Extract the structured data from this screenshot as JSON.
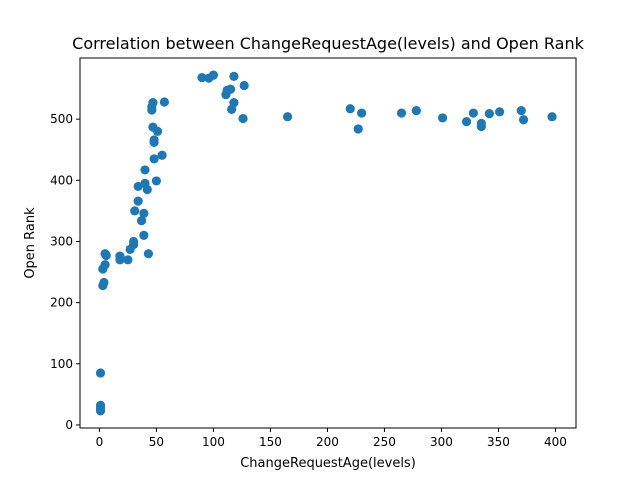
{
  "chart_data": {
    "type": "scatter",
    "title": "Correlation between ChangeRequestAge(levels) and Open Rank",
    "xlabel": "ChangeRequestAge(levels)",
    "ylabel": "Open Rank",
    "xlim": [
      -17,
      418
    ],
    "ylim": [
      -5,
      600
    ],
    "xticks": [
      0,
      50,
      100,
      150,
      200,
      250,
      300,
      350,
      400
    ],
    "yticks": [
      0,
      100,
      200,
      300,
      400,
      500
    ],
    "grid": false,
    "marker_color": "#1f77b4",
    "points": [
      {
        "x": 1,
        "y": 85
      },
      {
        "x": 1,
        "y": 32
      },
      {
        "x": 1,
        "y": 27
      },
      {
        "x": 1,
        "y": 23
      },
      {
        "x": 3,
        "y": 228
      },
      {
        "x": 4,
        "y": 233
      },
      {
        "x": 3,
        "y": 255
      },
      {
        "x": 5,
        "y": 262
      },
      {
        "x": 5,
        "y": 280
      },
      {
        "x": 6,
        "y": 277
      },
      {
        "x": 18,
        "y": 276
      },
      {
        "x": 18,
        "y": 270
      },
      {
        "x": 25,
        "y": 270
      },
      {
        "x": 27,
        "y": 287
      },
      {
        "x": 30,
        "y": 295
      },
      {
        "x": 30,
        "y": 300
      },
      {
        "x": 31,
        "y": 350
      },
      {
        "x": 34,
        "y": 366
      },
      {
        "x": 34,
        "y": 390
      },
      {
        "x": 37,
        "y": 334
      },
      {
        "x": 39,
        "y": 346
      },
      {
        "x": 39,
        "y": 310
      },
      {
        "x": 40,
        "y": 395
      },
      {
        "x": 40,
        "y": 417
      },
      {
        "x": 42,
        "y": 385
      },
      {
        "x": 43,
        "y": 280
      },
      {
        "x": 46,
        "y": 515
      },
      {
        "x": 46,
        "y": 520
      },
      {
        "x": 47,
        "y": 527
      },
      {
        "x": 47,
        "y": 487
      },
      {
        "x": 48,
        "y": 462
      },
      {
        "x": 48,
        "y": 466
      },
      {
        "x": 48,
        "y": 435
      },
      {
        "x": 50,
        "y": 399
      },
      {
        "x": 51,
        "y": 480
      },
      {
        "x": 55,
        "y": 441
      },
      {
        "x": 57,
        "y": 528
      },
      {
        "x": 90,
        "y": 568
      },
      {
        "x": 96,
        "y": 567
      },
      {
        "x": 100,
        "y": 572
      },
      {
        "x": 111,
        "y": 540
      },
      {
        "x": 112,
        "y": 547
      },
      {
        "x": 115,
        "y": 549
      },
      {
        "x": 116,
        "y": 516
      },
      {
        "x": 118,
        "y": 527
      },
      {
        "x": 118,
        "y": 570
      },
      {
        "x": 126,
        "y": 501
      },
      {
        "x": 127,
        "y": 555
      },
      {
        "x": 165,
        "y": 504
      },
      {
        "x": 220,
        "y": 517
      },
      {
        "x": 227,
        "y": 484
      },
      {
        "x": 230,
        "y": 510
      },
      {
        "x": 265,
        "y": 510
      },
      {
        "x": 278,
        "y": 514
      },
      {
        "x": 301,
        "y": 502
      },
      {
        "x": 322,
        "y": 496
      },
      {
        "x": 328,
        "y": 510
      },
      {
        "x": 335,
        "y": 488
      },
      {
        "x": 335,
        "y": 493
      },
      {
        "x": 342,
        "y": 509
      },
      {
        "x": 351,
        "y": 512
      },
      {
        "x": 370,
        "y": 514
      },
      {
        "x": 372,
        "y": 499
      },
      {
        "x": 397,
        "y": 504
      }
    ]
  }
}
